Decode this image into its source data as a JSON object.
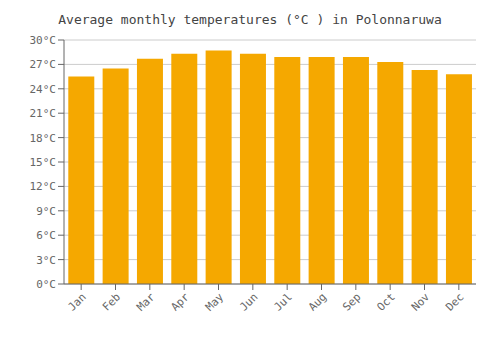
{
  "chart_data": {
    "type": "bar",
    "title": "Average monthly temperatures (°C ) in Polonnaruwa",
    "categories": [
      "Jan",
      "Feb",
      "Mar",
      "Apr",
      "May",
      "Jun",
      "Jul",
      "Aug",
      "Sep",
      "Oct",
      "Nov",
      "Dec"
    ],
    "values": [
      25.5,
      26.5,
      27.7,
      28.3,
      28.7,
      28.3,
      27.9,
      27.9,
      27.9,
      27.3,
      26.3,
      25.8
    ],
    "color": "#F5A800",
    "ylim": [
      0,
      30
    ],
    "yticks": [
      {
        "value": 0,
        "label": "0°C"
      },
      {
        "value": 3,
        "label": "3°C"
      },
      {
        "value": 6,
        "label": "6°C"
      },
      {
        "value": 9,
        "label": "9°C"
      },
      {
        "value": 12,
        "label": "12°C"
      },
      {
        "value": 15,
        "label": "15°C"
      },
      {
        "value": 18,
        "label": "18°C"
      },
      {
        "value": 21,
        "label": "21°C"
      },
      {
        "value": 24,
        "label": "24°C"
      },
      {
        "value": 27,
        "label": "27°C"
      },
      {
        "value": 30,
        "label": "30°C"
      }
    ],
    "grid": true
  }
}
